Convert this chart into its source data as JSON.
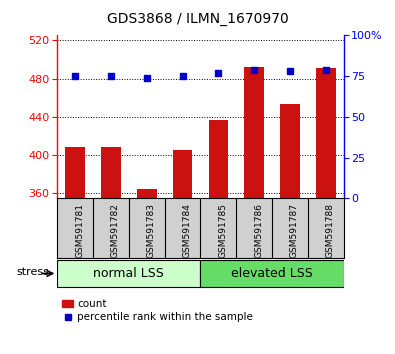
{
  "title": "GDS3868 / ILMN_1670970",
  "categories": [
    "GSM591781",
    "GSM591782",
    "GSM591783",
    "GSM591784",
    "GSM591785",
    "GSM591786",
    "GSM591787",
    "GSM591788"
  ],
  "counts": [
    408,
    408,
    365,
    405,
    437,
    492,
    453,
    491
  ],
  "percentile_ranks": [
    75,
    75,
    74,
    75,
    77,
    79,
    78,
    79
  ],
  "ylim_left": [
    355,
    525
  ],
  "yticks_left": [
    360,
    400,
    440,
    480,
    520
  ],
  "ylim_right": [
    0,
    100
  ],
  "yticks_right": [
    0,
    25,
    50,
    75,
    100
  ],
  "ytick_labels_right": [
    "0",
    "25",
    "50",
    "75",
    "100%"
  ],
  "group_labels": [
    "normal LSS",
    "elevated LSS"
  ],
  "group_colors": [
    "#ccffcc",
    "#66dd66"
  ],
  "bar_color": "#cc1111",
  "dot_color": "#0000cc",
  "bar_width": 0.55,
  "stress_label": "stress",
  "legend_count_label": "count",
  "legend_percentile_label": "percentile rank within the sample",
  "background_color": "#ffffff",
  "gray_bg": "#d0d0d0",
  "title_fontsize": 10,
  "tick_fontsize": 8,
  "label_fontsize": 8,
  "group_fontsize": 9
}
